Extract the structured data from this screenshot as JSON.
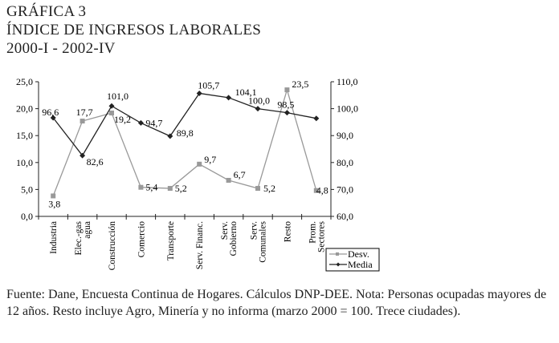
{
  "header": {
    "line1": "GRÁFICA 3",
    "line2": "ÍNDICE DE INGRESOS LABORALES",
    "line3": "2000-I - 2002-IV"
  },
  "chart_data": {
    "type": "line",
    "title": "ÍNDICE DE INGRESOS LABORALES",
    "categories": [
      "Industria",
      "Elec.-gas agua",
      "Construcción",
      "Comercio",
      "Transporte",
      "Serv. Financ.",
      "Serv. Gobierno",
      "Serv. Comunales",
      "Resto",
      "Prom. Sectores"
    ],
    "category_lines": [
      [
        "Industria"
      ],
      [
        "Elec.-gas",
        "agua"
      ],
      [
        "Construcción"
      ],
      [
        "Comercio"
      ],
      [
        "Transporte"
      ],
      [
        "Serv. Financ."
      ],
      [
        "Serv.",
        "Gobierno"
      ],
      [
        "Serv.",
        "Comunales"
      ],
      [
        "Resto"
      ],
      [
        "Prom.",
        "Sectores"
      ]
    ],
    "series": [
      {
        "name": "Desv.",
        "axis": "left",
        "color": "#999999",
        "marker": "square",
        "values": [
          3.8,
          17.7,
          19.2,
          5.4,
          5.2,
          9.7,
          6.7,
          5.2,
          23.5,
          4.8
        ],
        "labels": [
          "3,8",
          "17,7",
          "19,2",
          "5,4",
          "5,2",
          "9,7",
          "6,7",
          "5,2",
          "23,5",
          "4,8"
        ]
      },
      {
        "name": "Media",
        "axis": "right",
        "color": "#222222",
        "marker": "diamond",
        "values": [
          96.6,
          82.6,
          101.0,
          94.7,
          89.8,
          105.7,
          104.1,
          100.0,
          98.5,
          96.4
        ],
        "labels": [
          "96,6",
          "82,6",
          "101,0",
          "94,7",
          "89,8",
          "105,7",
          "104,1",
          "100,0",
          "98,5",
          ""
        ]
      }
    ],
    "ylim_left": [
      0,
      25
    ],
    "yticks_left": [
      "0,0",
      "5,0",
      "10,0",
      "15,0",
      "20,0",
      "25,0"
    ],
    "ylim_right": [
      60,
      110
    ],
    "yticks_right": [
      "60,0",
      "70,0",
      "80,0",
      "90,0",
      "100,0",
      "110,0"
    ],
    "grid": false,
    "legend": "bottom-right"
  },
  "footnote": "Fuente: Dane, Encuesta Continua de Hogares. Cálculos DNP-DEE. Nota: Personas ocupadas mayores de 12 años. Resto incluye Agro, Minería y no informa (marzo 2000 = 100. Trece ciudades)."
}
